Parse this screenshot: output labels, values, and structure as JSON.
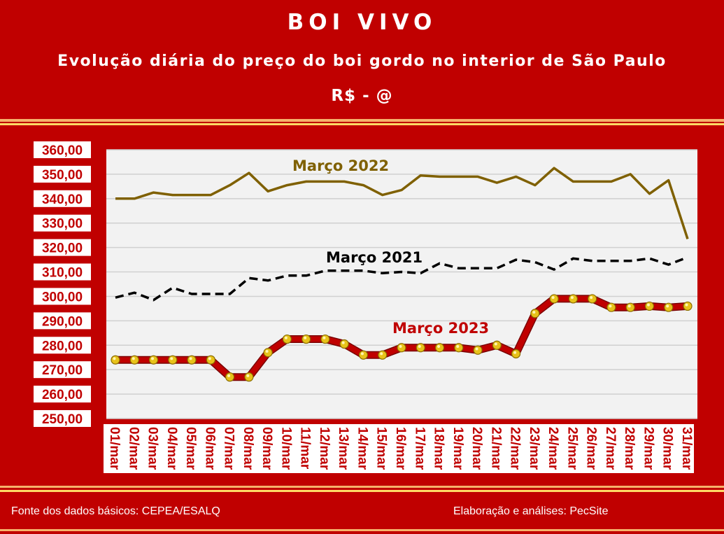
{
  "header": {
    "title": "BOI VIVO",
    "subtitle": "Evolução diária do preço do boi gordo no interior de São Paulo",
    "unit": "R$ - @"
  },
  "footer": {
    "source": "Fonte dos dados básicos: CEPEA/ESALQ",
    "author": "Elaboração e análises: PecSite"
  },
  "colors": {
    "background": "#c00000",
    "plot_area": "#f2f2f2",
    "series_2022": "#7f6000",
    "series_2021": "#000000",
    "series_2023": "#c00000",
    "marker_2023": "#e8c21a"
  },
  "chart_data": {
    "type": "line",
    "categories": [
      "01/mar",
      "02/mar",
      "03/mar",
      "04/mar",
      "05/mar",
      "06/mar",
      "07/mar",
      "08/mar",
      "09/mar",
      "10/mar",
      "11/mar",
      "12/mar",
      "13/mar",
      "14/mar",
      "15/mar",
      "16/mar",
      "17/mar",
      "18/mar",
      "19/mar",
      "20/mar",
      "21/mar",
      "22/mar",
      "23/mar",
      "24/mar",
      "25/mar",
      "26/mar",
      "27/mar",
      "28/mar",
      "29/mar",
      "30/mar",
      "31/mar"
    ],
    "ylim": [
      250,
      360
    ],
    "yticks": [
      "250,00",
      "260,00",
      "270,00",
      "280,00",
      "290,00",
      "300,00",
      "310,00",
      "320,00",
      "330,00",
      "340,00",
      "350,00",
      "360,00"
    ],
    "grid": true,
    "series": [
      {
        "name": "Março 2022",
        "style": "solid",
        "values": [
          340,
          340,
          342.5,
          341.5,
          341.5,
          341.5,
          345.5,
          350.5,
          343,
          345.5,
          347,
          347,
          347,
          345.5,
          341.5,
          343.5,
          349.5,
          349,
          349,
          349,
          346.5,
          349,
          345.5,
          352.5,
          347,
          347,
          347,
          350,
          342,
          347.5,
          323.5
        ]
      },
      {
        "name": "Março 2021",
        "style": "dashed",
        "values": [
          299.5,
          301.5,
          298.5,
          303.5,
          301,
          301,
          301,
          307.5,
          306.5,
          308.5,
          308.5,
          310.5,
          310.5,
          310.5,
          309.5,
          310,
          309.5,
          313.5,
          311.5,
          311.5,
          311.5,
          315,
          314,
          311,
          315.5,
          314.5,
          314.5,
          314.5,
          315.5,
          313,
          316
        ]
      },
      {
        "name": "Março 2023",
        "style": "thick-markers",
        "values": [
          274,
          274,
          274,
          274,
          274,
          274,
          267,
          267,
          277,
          282.5,
          282.5,
          282.5,
          280.5,
          276,
          276,
          279,
          279,
          279,
          279,
          278,
          280,
          276.5,
          293,
          299,
          299,
          299,
          295.5,
          295.5,
          296,
          295.5,
          296
        ]
      }
    ]
  }
}
